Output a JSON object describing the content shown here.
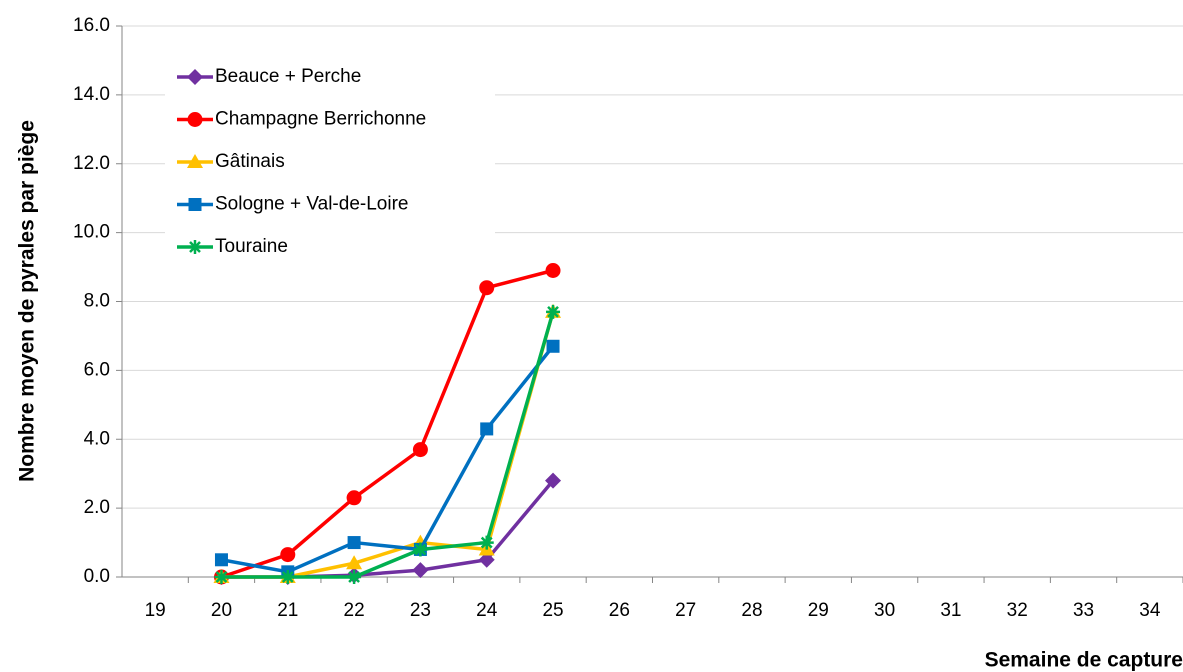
{
  "chart_data": {
    "type": "line",
    "ylabel": "Nombre moyen de pyrales par piège",
    "xlabel": "Semaine de capture",
    "categories": [
      "19",
      "20",
      "21",
      "22",
      "23",
      "24",
      "25",
      "26",
      "27",
      "28",
      "29",
      "30",
      "31",
      "32",
      "33",
      "34"
    ],
    "ylim": [
      0,
      16
    ],
    "yticks": [
      {
        "value": 0,
        "label": "0.0"
      },
      {
        "value": 2,
        "label": "2.0"
      },
      {
        "value": 4,
        "label": "4.0"
      },
      {
        "value": 6,
        "label": "6.0"
      },
      {
        "value": 8,
        "label": "8.0"
      },
      {
        "value": 10,
        "label": "10.0"
      },
      {
        "value": 12,
        "label": "12.0"
      },
      {
        "value": 14,
        "label": "14.0"
      },
      {
        "value": 16,
        "label": "16.0"
      }
    ],
    "grid": true,
    "legend": "upper left",
    "series": [
      {
        "name": "Beauce + Perche",
        "color": "#7030a0",
        "marker": "diamond",
        "values": [
          null,
          0,
          0,
          0.05,
          0.2,
          0.5,
          2.8,
          null,
          null,
          null,
          null,
          null,
          null,
          null,
          null,
          null
        ]
      },
      {
        "name": "Champagne Berrichonne",
        "color": "#ff0000",
        "marker": "circle",
        "values": [
          null,
          0,
          0.65,
          2.3,
          3.7,
          8.4,
          8.9,
          null,
          null,
          null,
          null,
          null,
          null,
          null,
          null,
          null
        ]
      },
      {
        "name": "Gâtinais",
        "color": "#ffc000",
        "marker": "triangle",
        "values": [
          null,
          0,
          0,
          0.4,
          1.0,
          0.8,
          7.7,
          null,
          null,
          null,
          null,
          null,
          null,
          null,
          null,
          null
        ]
      },
      {
        "name": "Sologne + Val-de-Loire",
        "color": "#0070c0",
        "marker": "square",
        "values": [
          null,
          0.5,
          0.15,
          1.0,
          0.8,
          4.3,
          6.7,
          null,
          null,
          null,
          null,
          null,
          null,
          null,
          null,
          null
        ]
      },
      {
        "name": "Touraine",
        "color": "#00b050",
        "marker": "star",
        "values": [
          null,
          0,
          0,
          0,
          0.8,
          1.0,
          7.7,
          null,
          null,
          null,
          null,
          null,
          null,
          null,
          null,
          null
        ]
      }
    ]
  }
}
